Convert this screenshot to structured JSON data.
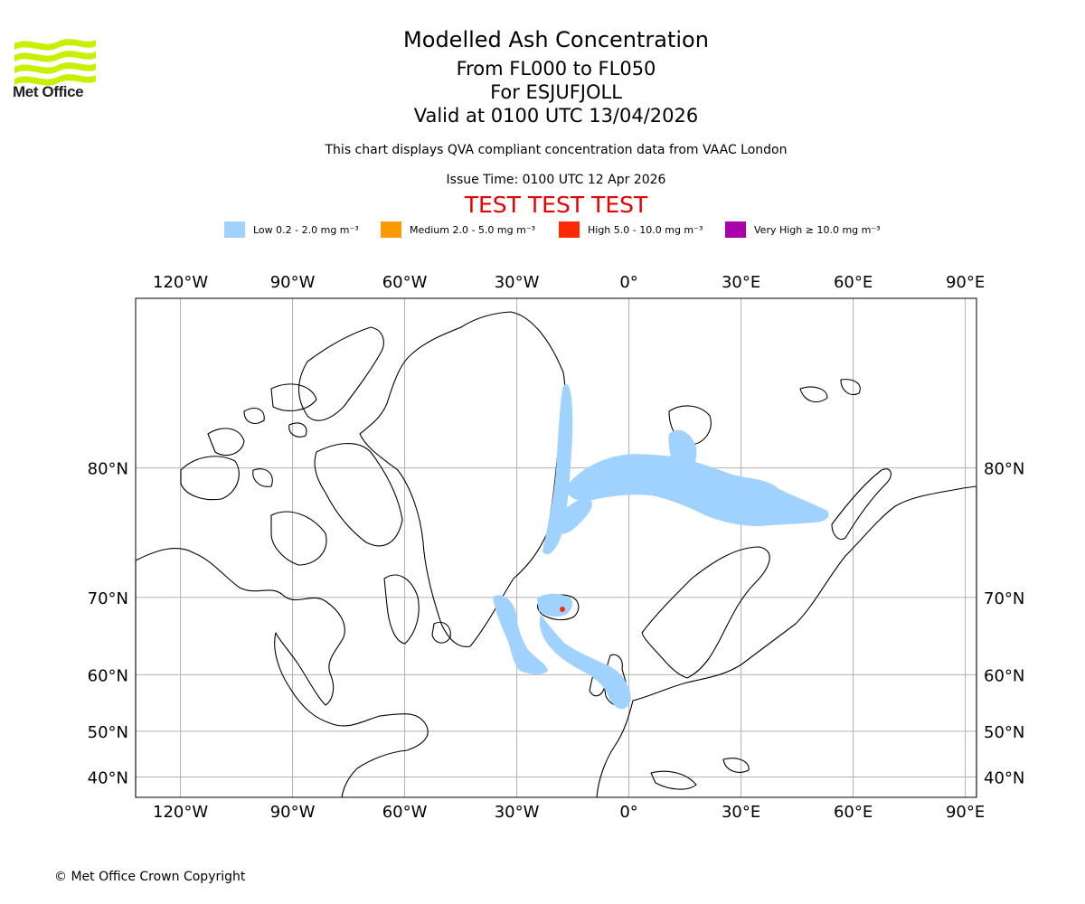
{
  "organisation": "Met Office",
  "title": "Modelled Ash Concentration",
  "level_range": "From FL000 to FL050",
  "volcano": "For ESJUFJOLL",
  "valid_time": "Valid at 0100 UTC 13/04/2026",
  "note": "This chart displays QVA compliant concentration data from VAAC London",
  "issue_time": "Issue Time: 0100 UTC 12 Apr 2026",
  "test_banner": "TEST TEST TEST",
  "test_color": "#e60000",
  "legend": [
    {
      "label": "Low 0.2 - 2.0 mg m⁻³",
      "color": "#a0d2ff"
    },
    {
      "label": "Medium 2.0 - 5.0 mg m⁻³",
      "color": "#ff9900"
    },
    {
      "label": "High 5.0 - 10.0 mg m⁻³",
      "color": "#ff2a00"
    },
    {
      "label": "Very High ≥ 10.0 mg m⁻³",
      "color": "#aa00aa"
    }
  ],
  "map": {
    "longitude_labels": [
      "120°W",
      "90°W",
      "60°W",
      "30°W",
      "0°",
      "30°E",
      "60°E",
      "90°E"
    ],
    "longitudes": [
      -120,
      -90,
      -60,
      -30,
      0,
      30,
      60,
      90
    ],
    "latitude_labels": [
      "80°N",
      "70°N",
      "60°N",
      "50°N",
      "40°N"
    ],
    "latitudes": [
      80,
      70,
      60,
      50,
      40
    ],
    "extent": {
      "lon_min": -132,
      "lon_max": 93,
      "lat_min": 35,
      "lat_max": 86
    }
  },
  "copyright": "© Met Office Crown Copyright"
}
